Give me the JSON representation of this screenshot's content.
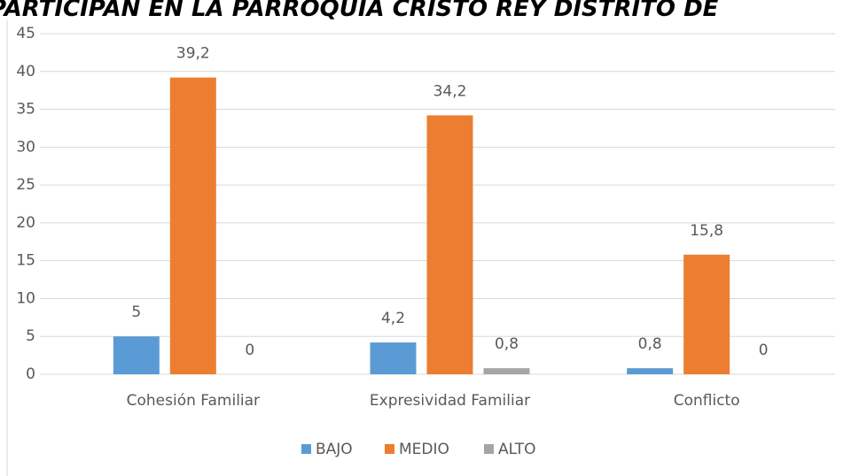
{
  "chart_data": {
    "type": "bar",
    "title": "PARTICIPAN EN LA PARROQUIA CRISTO REY DISTRITO DE",
    "categories": [
      "Cohesión Familiar",
      "Expresividad Familiar",
      "Conflicto"
    ],
    "series": [
      {
        "name": "BAJO",
        "color": "#5b9bd5",
        "values": [
          5,
          4.2,
          0.8
        ],
        "value_labels": [
          "5",
          "4,2",
          "0,8"
        ]
      },
      {
        "name": "MEDIO",
        "color": "#ed7d31",
        "values": [
          39.2,
          34.2,
          15.8
        ],
        "value_labels": [
          "39,2",
          "34,2",
          "15,8"
        ]
      },
      {
        "name": "ALTO",
        "color": "#a5a5a5",
        "values": [
          0,
          0.8,
          0
        ],
        "value_labels": [
          "0",
          "0,8",
          "0"
        ]
      }
    ],
    "ylim": [
      0,
      45
    ],
    "yticks": [
      0,
      5,
      10,
      15,
      20,
      25,
      30,
      35,
      40,
      45
    ],
    "grid": true,
    "legend": "bottom"
  }
}
